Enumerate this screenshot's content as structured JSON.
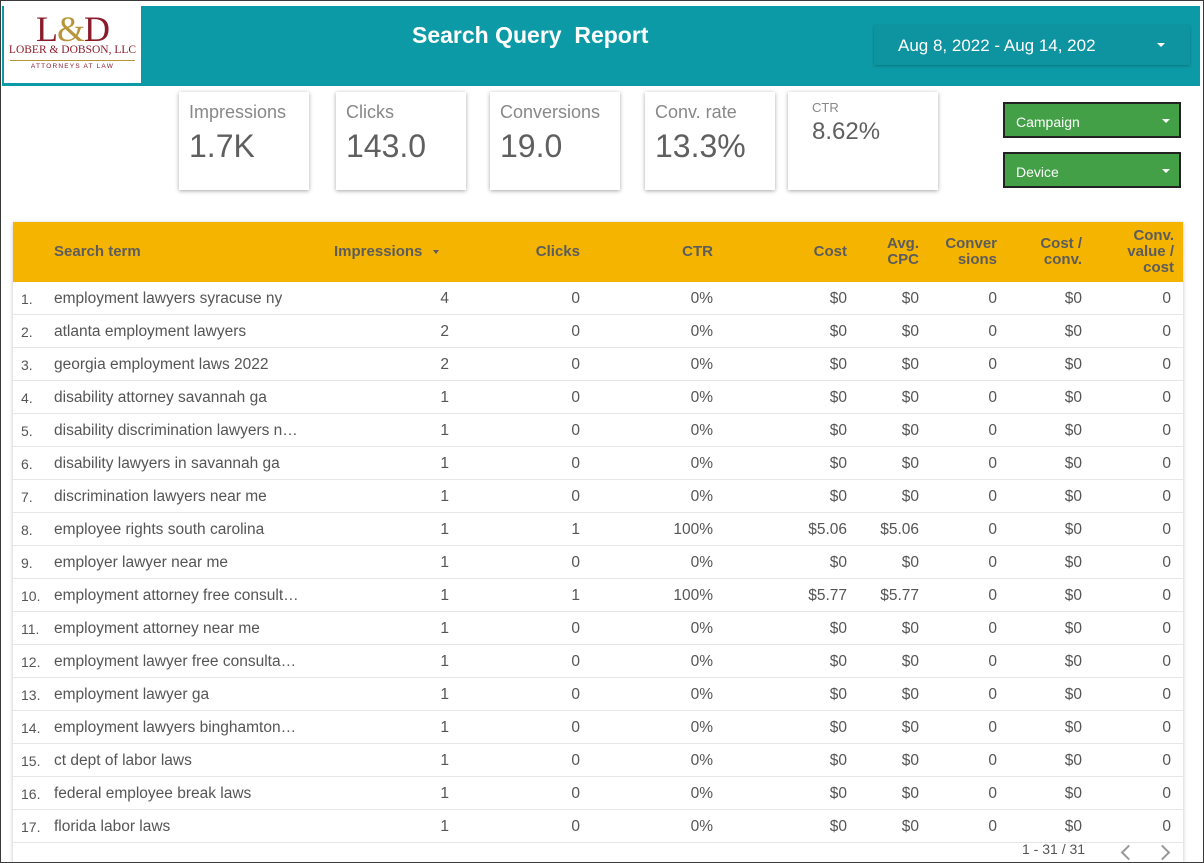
{
  "logo": {
    "mark_left": "L",
    "mark_amp": "&",
    "mark_right": "D",
    "firm": "LOBER & DOBSON, LLC",
    "sub": "ATTORNEYS AT LAW"
  },
  "header": {
    "title": "Search Query  Report",
    "date_range": "Aug 8, 2022 - Aug 14, 202"
  },
  "kpis": [
    {
      "label": "Impressions",
      "value": "1.7K"
    },
    {
      "label": "Clicks",
      "value": "143.0"
    },
    {
      "label": "Conversions",
      "value": "19.0"
    },
    {
      "label": "Conv. rate",
      "value": "13.3%"
    },
    {
      "label": "CTR",
      "value": "8.62%"
    }
  ],
  "filters": {
    "campaign": "Campaign",
    "device": "Device"
  },
  "table": {
    "headers": {
      "term": "Search term",
      "impressions": "Impressions",
      "clicks": "Clicks",
      "ctr": "CTR",
      "cost": "Cost",
      "avg_cpc_1": "Avg.",
      "avg_cpc_2": "CPC",
      "conversions_1": "Conver",
      "conversions_2": "sions",
      "cost_conv_1": "Cost /",
      "cost_conv_2": "conv.",
      "conv_value_1": "Conv.",
      "conv_value_2": "value /",
      "conv_value_3": "cost"
    },
    "sort_icon": "caret-down-icon",
    "rows": [
      {
        "idx": "1.",
        "term": "employment lawyers syracuse ny",
        "imp": "4",
        "clk": "0",
        "ctr": "0%",
        "cost": "$0",
        "cpc": "$0",
        "conv": "0",
        "cpconv": "$0",
        "cval": "0"
      },
      {
        "idx": "2.",
        "term": "atlanta employment lawyers",
        "imp": "2",
        "clk": "0",
        "ctr": "0%",
        "cost": "$0",
        "cpc": "$0",
        "conv": "0",
        "cpconv": "$0",
        "cval": "0"
      },
      {
        "idx": "3.",
        "term": "georgia employment laws 2022",
        "imp": "2",
        "clk": "0",
        "ctr": "0%",
        "cost": "$0",
        "cpc": "$0",
        "conv": "0",
        "cpconv": "$0",
        "cval": "0"
      },
      {
        "idx": "4.",
        "term": "disability attorney savannah ga",
        "imp": "1",
        "clk": "0",
        "ctr": "0%",
        "cost": "$0",
        "cpc": "$0",
        "conv": "0",
        "cpconv": "$0",
        "cval": "0"
      },
      {
        "idx": "5.",
        "term": "disability discrimination lawyers near me",
        "imp": "1",
        "clk": "0",
        "ctr": "0%",
        "cost": "$0",
        "cpc": "$0",
        "conv": "0",
        "cpconv": "$0",
        "cval": "0"
      },
      {
        "idx": "6.",
        "term": "disability lawyers in savannah ga",
        "imp": "1",
        "clk": "0",
        "ctr": "0%",
        "cost": "$0",
        "cpc": "$0",
        "conv": "0",
        "cpconv": "$0",
        "cval": "0"
      },
      {
        "idx": "7.",
        "term": "discrimination lawyers near me",
        "imp": "1",
        "clk": "0",
        "ctr": "0%",
        "cost": "$0",
        "cpc": "$0",
        "conv": "0",
        "cpconv": "$0",
        "cval": "0"
      },
      {
        "idx": "8.",
        "term": "employee rights south carolina",
        "imp": "1",
        "clk": "1",
        "ctr": "100%",
        "cost": "$5.06",
        "cpc": "$5.06",
        "conv": "0",
        "cpconv": "$0",
        "cval": "0"
      },
      {
        "idx": "9.",
        "term": "employer lawyer near me",
        "imp": "1",
        "clk": "0",
        "ctr": "0%",
        "cost": "$0",
        "cpc": "$0",
        "conv": "0",
        "cpconv": "$0",
        "cval": "0"
      },
      {
        "idx": "10.",
        "term": "employment attorney free consultation",
        "imp": "1",
        "clk": "1",
        "ctr": "100%",
        "cost": "$5.77",
        "cpc": "$5.77",
        "conv": "0",
        "cpconv": "$0",
        "cval": "0"
      },
      {
        "idx": "11.",
        "term": "employment attorney near me",
        "imp": "1",
        "clk": "0",
        "ctr": "0%",
        "cost": "$0",
        "cpc": "$0",
        "conv": "0",
        "cpconv": "$0",
        "cval": "0"
      },
      {
        "idx": "12.",
        "term": "employment lawyer free consultation",
        "imp": "1",
        "clk": "0",
        "ctr": "0%",
        "cost": "$0",
        "cpc": "$0",
        "conv": "0",
        "cpconv": "$0",
        "cval": "0"
      },
      {
        "idx": "13.",
        "term": "employment lawyer ga",
        "imp": "1",
        "clk": "0",
        "ctr": "0%",
        "cost": "$0",
        "cpc": "$0",
        "conv": "0",
        "cpconv": "$0",
        "cval": "0"
      },
      {
        "idx": "14.",
        "term": "employment lawyers binghamton ny",
        "imp": "1",
        "clk": "0",
        "ctr": "0%",
        "cost": "$0",
        "cpc": "$0",
        "conv": "0",
        "cpconv": "$0",
        "cval": "0"
      },
      {
        "idx": "15.",
        "term": "ct dept of labor laws",
        "imp": "1",
        "clk": "0",
        "ctr": "0%",
        "cost": "$0",
        "cpc": "$0",
        "conv": "0",
        "cpconv": "$0",
        "cval": "0"
      },
      {
        "idx": "16.",
        "term": "federal employee break laws",
        "imp": "1",
        "clk": "0",
        "ctr": "0%",
        "cost": "$0",
        "cpc": "$0",
        "conv": "0",
        "cpconv": "$0",
        "cval": "0"
      },
      {
        "idx": "17.",
        "term": "florida labor laws",
        "imp": "1",
        "clk": "0",
        "ctr": "0%",
        "cost": "$0",
        "cpc": "$0",
        "conv": "0",
        "cpconv": "$0",
        "cval": "0"
      }
    ],
    "pagination": "1 - 31 / 31"
  },
  "colors": {
    "header": "#0d9aa7",
    "table_header": "#f4b400",
    "filter": "#43a047",
    "brand": "#8b1c2b"
  }
}
